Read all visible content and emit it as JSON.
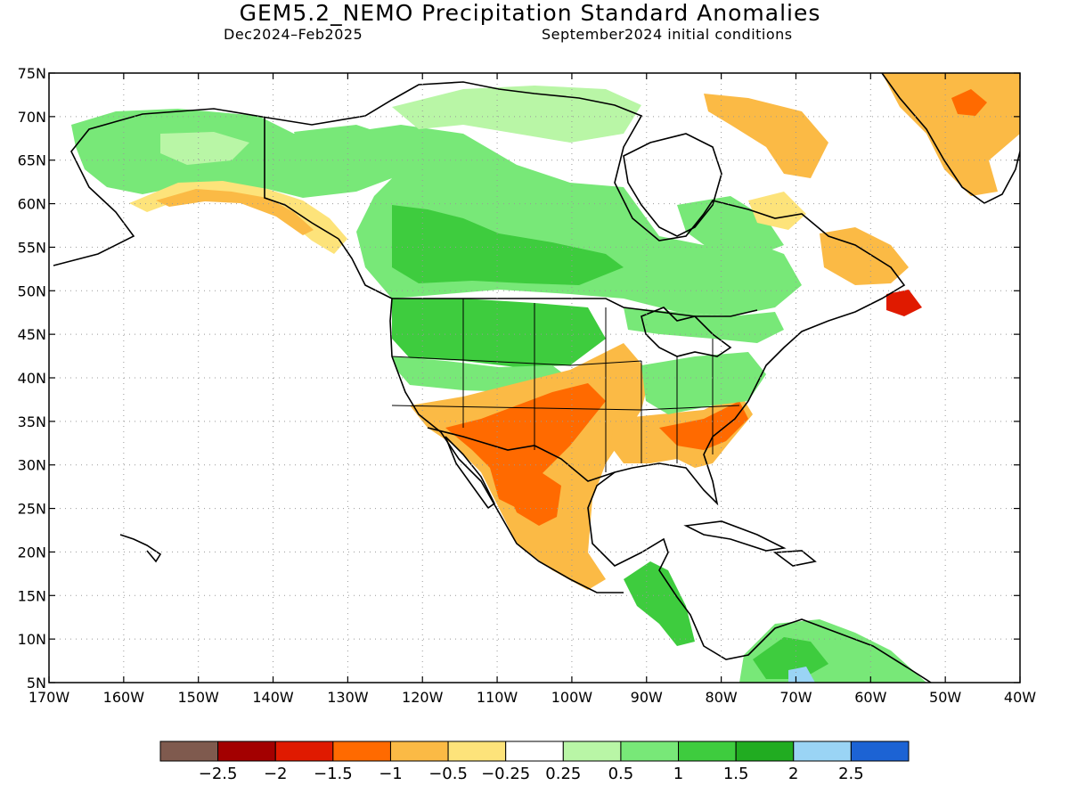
{
  "header": {
    "title": "GEM5.2_NEMO Precipitation Standard Anomalies",
    "period": "Dec2024–Feb2025",
    "conditions": "September2024 initial conditions"
  },
  "axes": {
    "lat_labels": [
      "75N",
      "70N",
      "65N",
      "60N",
      "55N",
      "50N",
      "45N",
      "40N",
      "35N",
      "30N",
      "25N",
      "20N",
      "15N",
      "10N",
      "5N"
    ],
    "lon_labels": [
      "170W",
      "160W",
      "150W",
      "140W",
      "130W",
      "120W",
      "110W",
      "100W",
      "90W",
      "80W",
      "70W",
      "60W",
      "50W",
      "40W"
    ],
    "lat_range": [
      5,
      75
    ],
    "lon_range": [
      -170,
      -40
    ],
    "grid": "dotted"
  },
  "colorbar": {
    "colors": [
      "#7f5a4e",
      "#a30000",
      "#e01a00",
      "#ff6a00",
      "#fbba45",
      "#fde37a",
      "#ffffff",
      "#b9f6a6",
      "#78e878",
      "#3ecc3e",
      "#21ac21",
      "#9ad4f5",
      "#1c63d4"
    ],
    "labels": [
      "−2.5",
      "−2",
      "−1.5",
      "−1",
      "−0.5",
      "−0.25",
      "0.25",
      "0.5",
      "1",
      "1.5",
      "2",
      "2.5"
    ]
  },
  "legend_colors": {
    "green_light": "#b9f6a6",
    "green": "#78e878",
    "green_dark": "#3ecc3e",
    "yellow": "#fde37a",
    "orange_light": "#fbba45",
    "orange": "#ff6a00",
    "red": "#e01a00",
    "blue_light": "#9ad4f5"
  }
}
